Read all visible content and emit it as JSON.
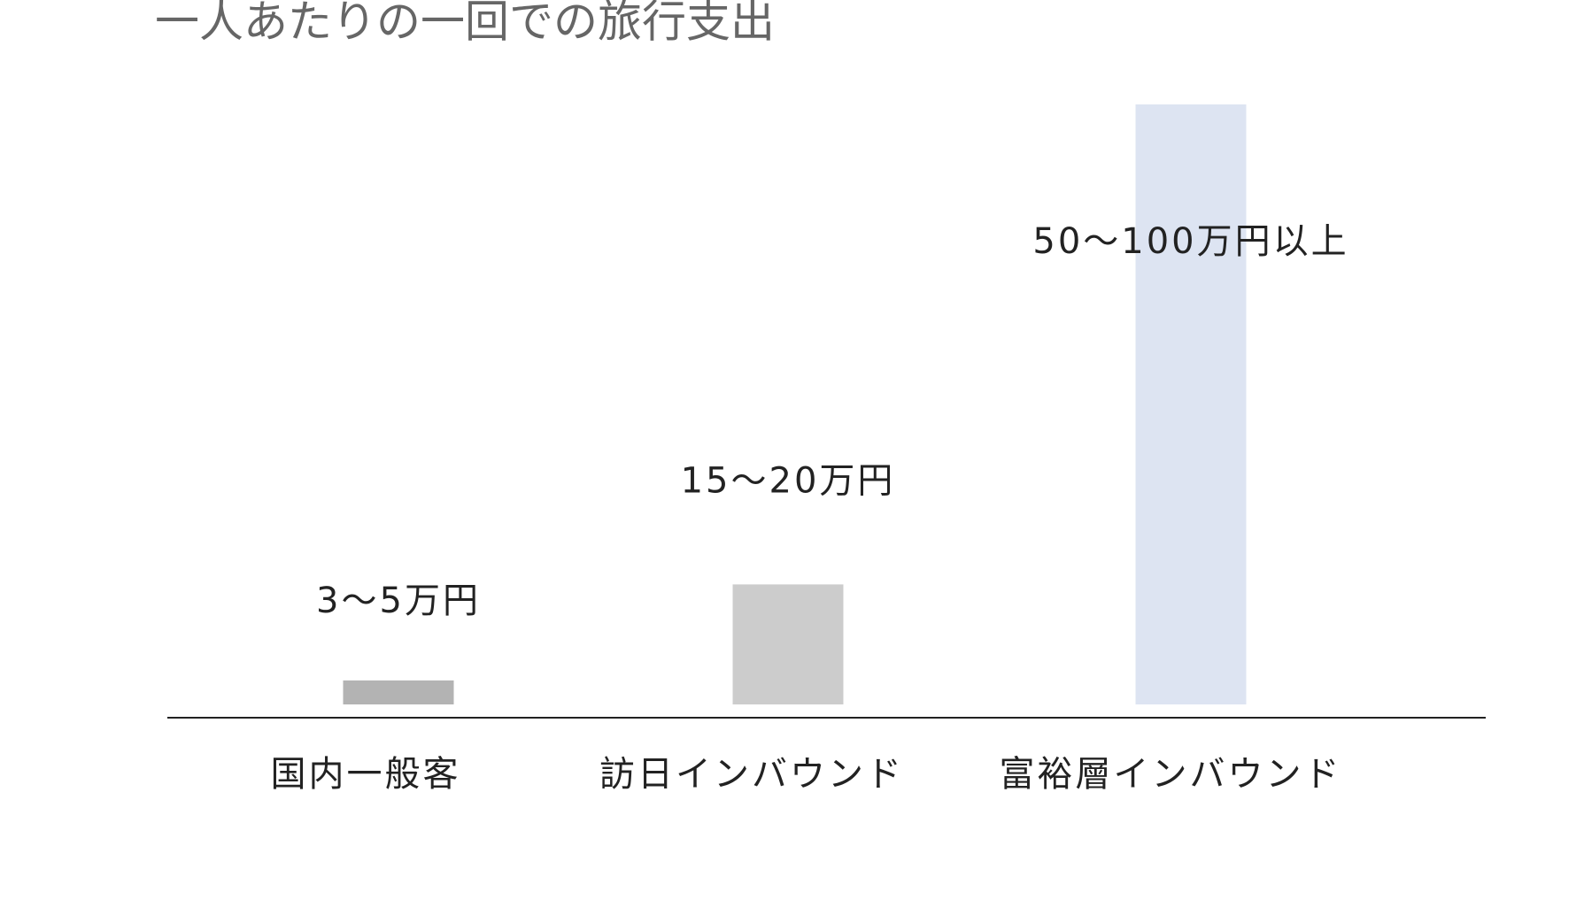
{
  "chart_data": {
    "type": "bar",
    "title": "一人あたりの一回での旅行支出",
    "categories": [
      "国内一般客",
      "訪日インバウンド",
      "富裕層インバウンド"
    ],
    "values": [
      4,
      20,
      100
    ],
    "value_labels": [
      "3〜5万円",
      "15〜20万円",
      "50〜100万円以上"
    ],
    "colors": [
      "#b3b3b3",
      "#cccccc",
      "#dde4f2"
    ],
    "ylim": [
      0,
      100
    ]
  }
}
